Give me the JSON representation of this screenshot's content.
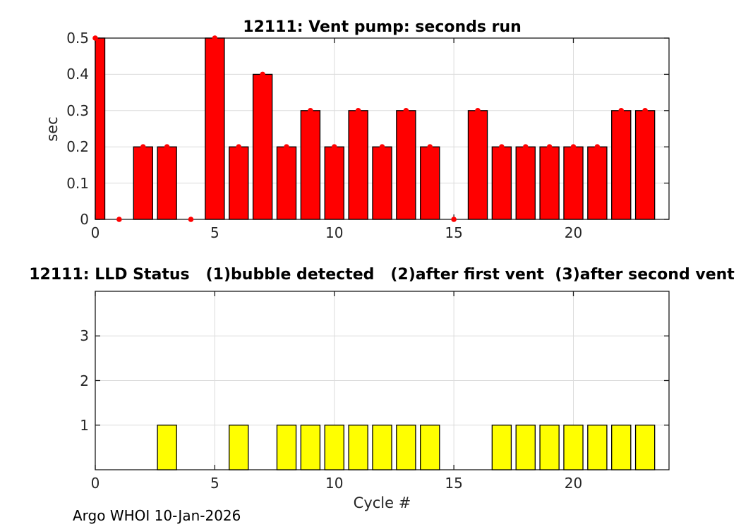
{
  "figure": {
    "background": "#ffffff"
  },
  "colors": {
    "axis_box": "#1a1a1a",
    "grid": "#dcdcdc",
    "tick_label": "#262626",
    "title": "#000000",
    "vent_bar": "#ff0000",
    "status_bar": "#ffff00",
    "bar_edge": "#000000",
    "marker": "#ff0000"
  },
  "footer": {
    "text": "Argo WHOI 10-Jan-2026"
  },
  "chart_data": [
    {
      "id": "vent_pump",
      "type": "bar",
      "title": "12111: Vent pump: seconds run",
      "ylabel": "sec",
      "xlabel": "",
      "x": [
        0,
        1,
        2,
        3,
        4,
        5,
        6,
        7,
        8,
        9,
        10,
        11,
        12,
        13,
        14,
        15,
        16,
        17,
        18,
        19,
        20,
        21,
        22,
        23
      ],
      "values": [
        0.5,
        0,
        0.2,
        0.2,
        0,
        0.5,
        0.2,
        0.4,
        0.2,
        0.3,
        0.2,
        0.3,
        0.2,
        0.3,
        0.2,
        0,
        0.3,
        0.2,
        0.2,
        0.2,
        0.2,
        0.2,
        0.3,
        0.3
      ],
      "bar_color": "#ff0000",
      "bar_edge_color": "#000000",
      "marker": {
        "style": "dot",
        "color": "#ff0000"
      },
      "xlim": [
        0,
        24
      ],
      "ylim": [
        0,
        0.5
      ],
      "xticks": [
        0,
        5,
        10,
        15,
        20
      ],
      "xtick_labels": [
        "0",
        "5",
        "10",
        "15",
        "20"
      ],
      "yticks": [
        0,
        0.1,
        0.2,
        0.3,
        0.4,
        0.5
      ],
      "ytick_labels": [
        "0",
        "0.1",
        "0.2",
        "0.3",
        "0.4",
        "0.5"
      ],
      "grid": true,
      "legend": null
    },
    {
      "id": "lld_status",
      "type": "bar",
      "title": "12111: LLD Status   (1)bubble detected   (2)after first vent  (3)after second vent",
      "ylabel": "",
      "xlabel": "Cycle #",
      "x": [
        0,
        1,
        2,
        3,
        4,
        5,
        6,
        7,
        8,
        9,
        10,
        11,
        12,
        13,
        14,
        15,
        16,
        17,
        18,
        19,
        20,
        21,
        22,
        23
      ],
      "values": [
        0,
        0,
        0,
        1,
        0,
        0,
        1,
        0,
        1,
        1,
        1,
        1,
        1,
        1,
        1,
        0,
        0,
        1,
        1,
        1,
        1,
        1,
        1,
        1
      ],
      "bar_color": "#ffff00",
      "bar_edge_color": "#000000",
      "marker": null,
      "xlim": [
        0,
        24
      ],
      "ylim": [
        0,
        4
      ],
      "xticks": [
        0,
        5,
        10,
        15,
        20
      ],
      "xtick_labels": [
        "0",
        "5",
        "10",
        "15",
        "20"
      ],
      "yticks": [
        1,
        2,
        3
      ],
      "ytick_labels": [
        "1",
        "2",
        "3"
      ],
      "grid": true,
      "legend": null
    }
  ]
}
